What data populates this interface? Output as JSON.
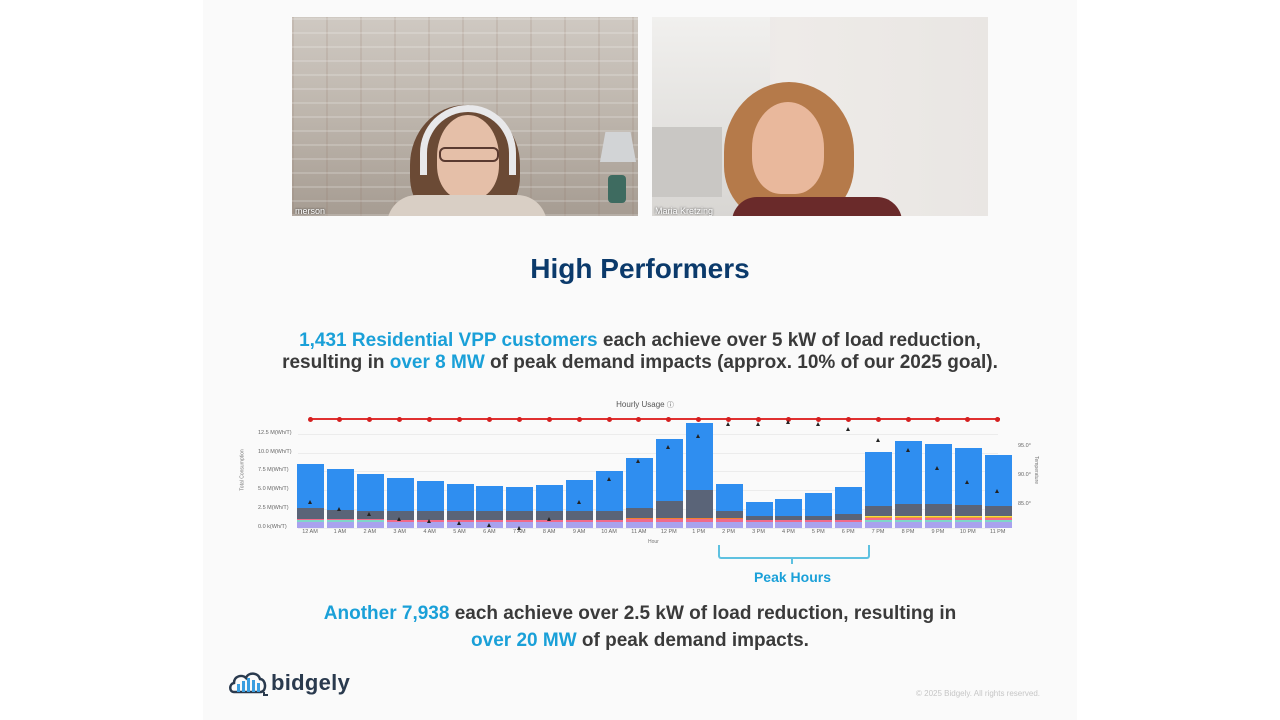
{
  "video_tiles": [
    {
      "name_label": "merson",
      "background": "brick wall"
    },
    {
      "name_label": "Maria Kretzing",
      "background": "living room"
    }
  ],
  "slide": {
    "title": "High Performers",
    "paragraph1": {
      "highlight1": "1,431 Residential VPP customers",
      "text1": " each achieve over 5 kW of load reduction,",
      "text2": "resulting in ",
      "highlight2": "over 8 MW",
      "text3": " of peak demand impacts (approx. 10% of our 2025 goal)."
    },
    "paragraph2": {
      "highlight1": "Another 7,938",
      "text1": " each achieve over 2.5 kW of load reduction, resulting in",
      "highlight2": "over 20 MW",
      "text2": " of peak demand impacts."
    },
    "peak_label": "Peak Hours",
    "logo_text": "bidgely",
    "copyright": "© 2025 Bidgely. All rights reserved."
  },
  "colors": {
    "title": "#0b3a6b",
    "highlight": "#1aa0d8",
    "body_text": "#3a3a3a",
    "bar_main": "#2f8ef0",
    "bar_dark": "#5a6478",
    "temp_line": "#e03030"
  },
  "chart_data": {
    "type": "bar",
    "title": "Hourly Usage",
    "info_icon": "ⓘ",
    "xlabel": "Hour",
    "ylabel": "Total Consumption",
    "y2label": "Temperature",
    "yticks": [
      "0.0 k(Wh/T)",
      "2.5 M(Wh/T)",
      "5.0 M(Wh/T)",
      "7.5 M(Wh/T)",
      "10.0 M(Wh/T)",
      "12.5 M(Wh/T)"
    ],
    "y2ticks": [
      "85.0°",
      "90.0°",
      "95.0°"
    ],
    "ylim": [
      0,
      13.5
    ],
    "categories": [
      "12 AM",
      "1 AM",
      "2 AM",
      "3 AM",
      "4 AM",
      "5 AM",
      "6 AM",
      "7 AM",
      "8 AM",
      "9 AM",
      "10 AM",
      "11 AM",
      "12 PM",
      "1 PM",
      "2 PM",
      "3 PM",
      "4 PM",
      "5 PM",
      "6 PM",
      "7 PM",
      "8 PM",
      "9 PM",
      "10 PM",
      "11 PM"
    ],
    "totals_M": [
      8.5,
      7.8,
      7.1,
      6.6,
      6.2,
      5.9,
      5.6,
      5.5,
      5.7,
      6.4,
      7.5,
      9.3,
      11.8,
      13.9,
      5.8,
      3.4,
      3.8,
      4.6,
      5.4,
      10.1,
      11.6,
      11.1,
      10.6,
      9.7
    ],
    "base_layer_M": [
      2.6,
      2.4,
      2.3,
      2.2,
      2.2,
      2.2,
      2.2,
      2.2,
      2.2,
      2.2,
      2.3,
      2.7,
      3.6,
      5.0,
      2.2,
      1.5,
      1.5,
      1.6,
      1.8,
      2.9,
      3.2,
      3.2,
      3.1,
      2.9
    ],
    "temperature_markers": [
      82.0,
      80.5,
      79.5,
      78.5,
      78.0,
      77.5,
      77.0,
      76.5,
      78.5,
      82.0,
      87.0,
      91.0,
      94.0,
      96.5,
      99.0,
      99.0,
      99.5,
      99.0,
      98.0,
      95.5,
      93.5,
      89.5,
      86.5,
      84.5
    ],
    "reference_line": "constant red line with dots at top of plot area",
    "grid": true,
    "legend": "none visible",
    "annotation": {
      "label": "Peak Hours",
      "range": [
        "2 PM",
        "6 PM"
      ]
    }
  }
}
